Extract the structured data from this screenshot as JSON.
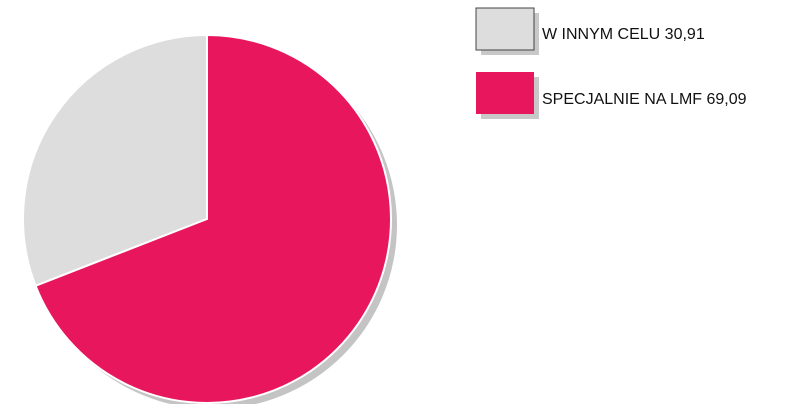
{
  "chart_data": {
    "type": "pie",
    "categories": [
      "W INNYM CELU",
      "SPECJALNIE NA LMF"
    ],
    "values": [
      30.91,
      69.09
    ],
    "labels": [
      "W INNYM CELU 30,91",
      "SPECJALNIE NA LMF 69,09"
    ],
    "colors": [
      "#dddddd",
      "#e8175d"
    ],
    "legend_position": "top-right",
    "title": ""
  }
}
